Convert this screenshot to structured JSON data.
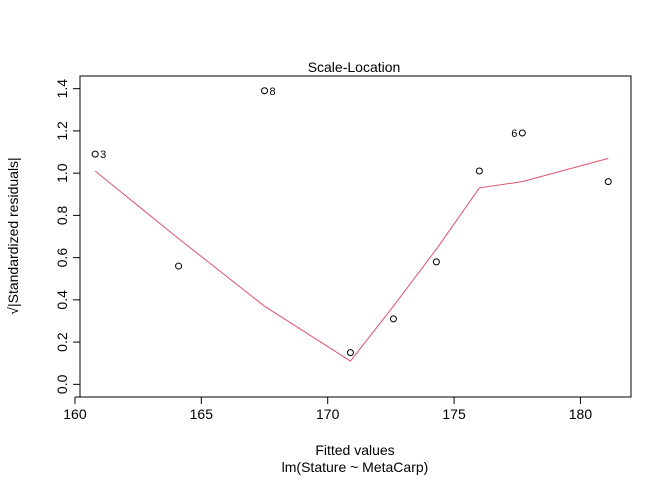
{
  "chart_data": {
    "type": "scatter",
    "title": "Scale-Location",
    "xlabel": "Fitted values",
    "sublabel": "lm(Stature ~ MetaCarp)",
    "ylabel": "√|Standardized residuals|",
    "xlim": [
      160.2,
      182.0
    ],
    "ylim": [
      -0.06,
      1.46
    ],
    "x_ticks": [
      160,
      165,
      170,
      175,
      180
    ],
    "x_tick_labels": [
      "160",
      "165",
      "170",
      "175",
      "180"
    ],
    "y_ticks": [
      0.0,
      0.2,
      0.4,
      0.6,
      0.8,
      1.0,
      1.2,
      1.4
    ],
    "y_tick_labels": [
      "0.0",
      "0.2",
      "0.4",
      "0.6",
      "0.8",
      "1.0",
      "1.2",
      "1.4"
    ],
    "points": [
      {
        "x": 160.8,
        "y": 1.09,
        "label": "3"
      },
      {
        "x": 164.1,
        "y": 0.56,
        "label": ""
      },
      {
        "x": 167.5,
        "y": 1.39,
        "label": "8"
      },
      {
        "x": 170.9,
        "y": 0.15,
        "label": ""
      },
      {
        "x": 172.6,
        "y": 0.31,
        "label": ""
      },
      {
        "x": 174.3,
        "y": 0.58,
        "label": ""
      },
      {
        "x": 176.0,
        "y": 1.01,
        "label": ""
      },
      {
        "x": 177.7,
        "y": 1.19,
        "label": "6"
      },
      {
        "x": 181.1,
        "y": 0.96,
        "label": ""
      }
    ],
    "smoother": {
      "color": "#DF536B",
      "x": [
        160.8,
        164.1,
        167.5,
        170.9,
        172.6,
        174.3,
        176.0,
        177.7,
        181.1
      ],
      "y": [
        1.01,
        0.69,
        0.37,
        0.11,
        0.37,
        0.64,
        0.93,
        0.96,
        1.07
      ]
    }
  }
}
